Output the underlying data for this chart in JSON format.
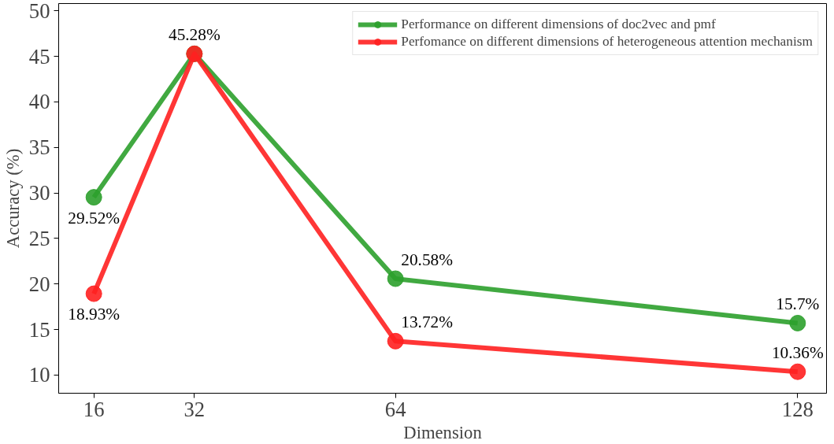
{
  "chart_data": {
    "type": "line",
    "xlabel": "Dimension",
    "ylabel": "Accuracy (%)",
    "x": [
      16,
      32,
      64,
      128
    ],
    "xlim": [
      10.4,
      132.6
    ],
    "xticks": [
      16,
      32,
      64,
      128
    ],
    "ylim": [
      8.0,
      50.8
    ],
    "yticks": [
      10,
      15,
      20,
      25,
      30,
      35,
      40,
      45,
      50
    ],
    "series": [
      {
        "name": "Performance on different dimensions of doc2vec and pmf",
        "color": "#2ca02c",
        "values": [
          29.52,
          45.28,
          20.58,
          15.7
        ],
        "value_labels": [
          "29.52%",
          "45.28%",
          "20.58%",
          "15.7%"
        ]
      },
      {
        "name": "Perfomance on different dimensions of heterogeneous attention mechanism",
        "color": "#ff2020",
        "values": [
          18.93,
          45.28,
          13.72,
          10.36
        ],
        "value_labels": [
          "18.93%",
          null,
          "13.72%",
          "10.36%"
        ]
      }
    ],
    "marker": "circle",
    "line_style": "solid",
    "legend": "top right",
    "grid": false
  }
}
